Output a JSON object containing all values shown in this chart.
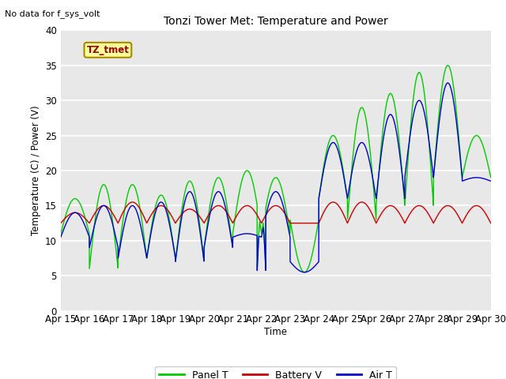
{
  "title": "Tonzi Tower Met: Temperature and Power",
  "ylabel": "Temperature (C) / Power (V)",
  "xlabel": "Time",
  "no_data_label": "No data for f_sys_volt",
  "annotation_label": "TZ_tmet",
  "ylim": [
    0,
    40
  ],
  "background_color": "#e8e8e8",
  "panel_color": "#00cc00",
  "battery_color": "#cc0000",
  "air_color": "#0000cc",
  "xtick_labels": [
    "Apr 15",
    "Apr 16",
    "Apr 17",
    "Apr 18",
    "Apr 19",
    "Apr 20",
    "Apr 21",
    "Apr 22",
    "Apr 23",
    "Apr 24",
    "Apr 25",
    "Apr 26",
    "Apr 27",
    "Apr 28",
    "Apr 29",
    "Apr 30"
  ],
  "legend_panel": "Panel T",
  "legend_battery": "Battery V",
  "legend_air": "Air T",
  "panel_peaks": [
    16,
    18,
    18,
    16.5,
    18.5,
    19,
    20,
    19,
    5.5,
    25,
    29,
    31,
    34,
    35,
    25,
    34,
    28
  ],
  "panel_troughs": [
    11,
    6,
    7.5,
    7.5,
    7,
    9,
    11,
    11,
    13,
    16,
    13,
    15,
    15,
    19,
    19,
    17,
    18
  ],
  "air_peaks": [
    14,
    15,
    15,
    15.5,
    17,
    17,
    11,
    17,
    5.5,
    24,
    24,
    28,
    30,
    32.5,
    19,
    32,
    26
  ],
  "air_troughs": [
    10.5,
    9,
    7.5,
    7.5,
    7,
    9,
    10.5,
    10.5,
    7,
    16,
    16,
    16,
    19,
    19,
    18.5,
    18,
    18.5
  ],
  "batt_peaks": [
    14,
    15,
    15.5,
    15,
    14.5,
    15,
    15,
    15,
    12.5,
    15.5,
    15.5,
    15,
    15,
    15,
    15,
    15,
    15
  ],
  "batt_base": 12.5
}
